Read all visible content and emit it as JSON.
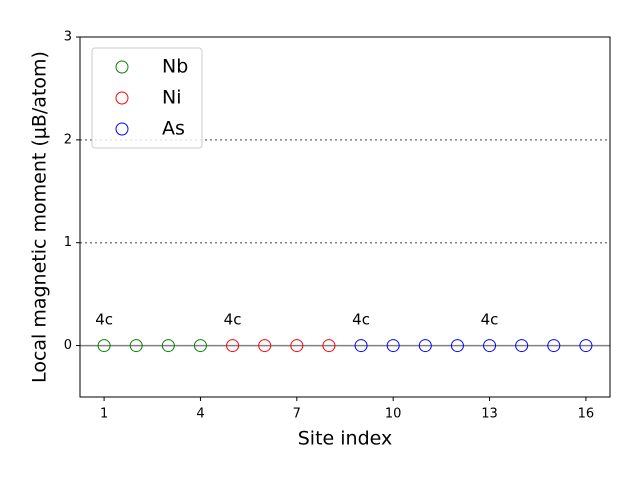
{
  "chart_data": {
    "type": "scatter",
    "xlabel": "Site index",
    "ylabel": "Local magnetic moment (μB/atom)",
    "xlim": [
      0.25,
      16.75
    ],
    "xticks": [
      1,
      4,
      7,
      10,
      13,
      16
    ],
    "ylim": [
      -0.5,
      3
    ],
    "yticks": [
      0,
      1,
      2,
      3
    ],
    "hlines": [
      {
        "y": 0,
        "style": "solid"
      },
      {
        "y": 1,
        "style": "dotted"
      },
      {
        "y": 2,
        "style": "dotted"
      }
    ],
    "legend": "upper left",
    "series": [
      {
        "name": "Nb",
        "color": "#008000",
        "x": [
          1,
          2,
          3,
          4
        ],
        "values": [
          0,
          0,
          0,
          0
        ]
      },
      {
        "name": "Ni",
        "color": "#ff0000",
        "x": [
          5,
          6,
          7,
          8
        ],
        "values": [
          0,
          0,
          0,
          0
        ]
      },
      {
        "name": "As",
        "color": "#0000ff",
        "x": [
          9,
          10,
          11,
          12,
          13,
          14,
          15,
          16
        ],
        "values": [
          0,
          0,
          0,
          0,
          0,
          0,
          0,
          0
        ]
      }
    ],
    "annotations": [
      {
        "text": "4c",
        "x": 1,
        "y": 0.25
      },
      {
        "text": "4c",
        "x": 5,
        "y": 0.25
      },
      {
        "text": "4c",
        "x": 9,
        "y": 0.25
      },
      {
        "text": "4c",
        "x": 13,
        "y": 0.25
      }
    ]
  }
}
